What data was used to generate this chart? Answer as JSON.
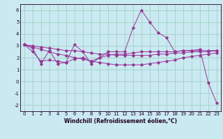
{
  "xlabel": "Windchill (Refroidissement éolien,°C)",
  "ylabel": "",
  "xlim": [
    -0.5,
    23.5
  ],
  "ylim": [
    -2.5,
    6.5
  ],
  "yticks": [
    -2,
    -1,
    0,
    1,
    2,
    3,
    4,
    5,
    6
  ],
  "xticks": [
    0,
    1,
    2,
    3,
    4,
    5,
    6,
    7,
    8,
    9,
    10,
    11,
    12,
    13,
    14,
    15,
    16,
    17,
    18,
    19,
    20,
    21,
    22,
    23
  ],
  "bg_color": "#c8eaf0",
  "line_color": "#993399",
  "grid_color": "#99ccbb",
  "series": [
    [
      3.1,
      2.8,
      1.5,
      2.6,
      1.5,
      1.6,
      3.1,
      2.5,
      1.5,
      2.0,
      2.5,
      2.5,
      2.5,
      4.5,
      6.0,
      5.0,
      4.1,
      3.7,
      2.5,
      2.6,
      2.6,
      2.7,
      -0.1,
      -1.8
    ],
    [
      3.1,
      2.5,
      1.7,
      1.8,
      1.7,
      1.6,
      1.9,
      2.0,
      1.7,
      2.0,
      2.2,
      2.3,
      2.3,
      2.4,
      2.5,
      2.5,
      2.5,
      2.5,
      2.5,
      2.6,
      2.6,
      2.6,
      2.6,
      2.6
    ],
    [
      3.1,
      2.9,
      2.7,
      2.5,
      2.3,
      2.2,
      2.0,
      1.9,
      1.7,
      1.6,
      1.5,
      1.4,
      1.4,
      1.4,
      1.4,
      1.5,
      1.6,
      1.7,
      1.8,
      2.0,
      2.1,
      2.2,
      2.3,
      2.4
    ],
    [
      3.1,
      3.0,
      2.9,
      2.8,
      2.7,
      2.6,
      2.6,
      2.5,
      2.4,
      2.3,
      2.3,
      2.2,
      2.2,
      2.2,
      2.2,
      2.2,
      2.3,
      2.3,
      2.4,
      2.4,
      2.5,
      2.5,
      2.5,
      2.6
    ]
  ],
  "tick_fontsize": 5,
  "xlabel_fontsize": 5.5,
  "xlabel_fontweight": "bold",
  "tick_color": "#220022",
  "spine_color": "#220022"
}
